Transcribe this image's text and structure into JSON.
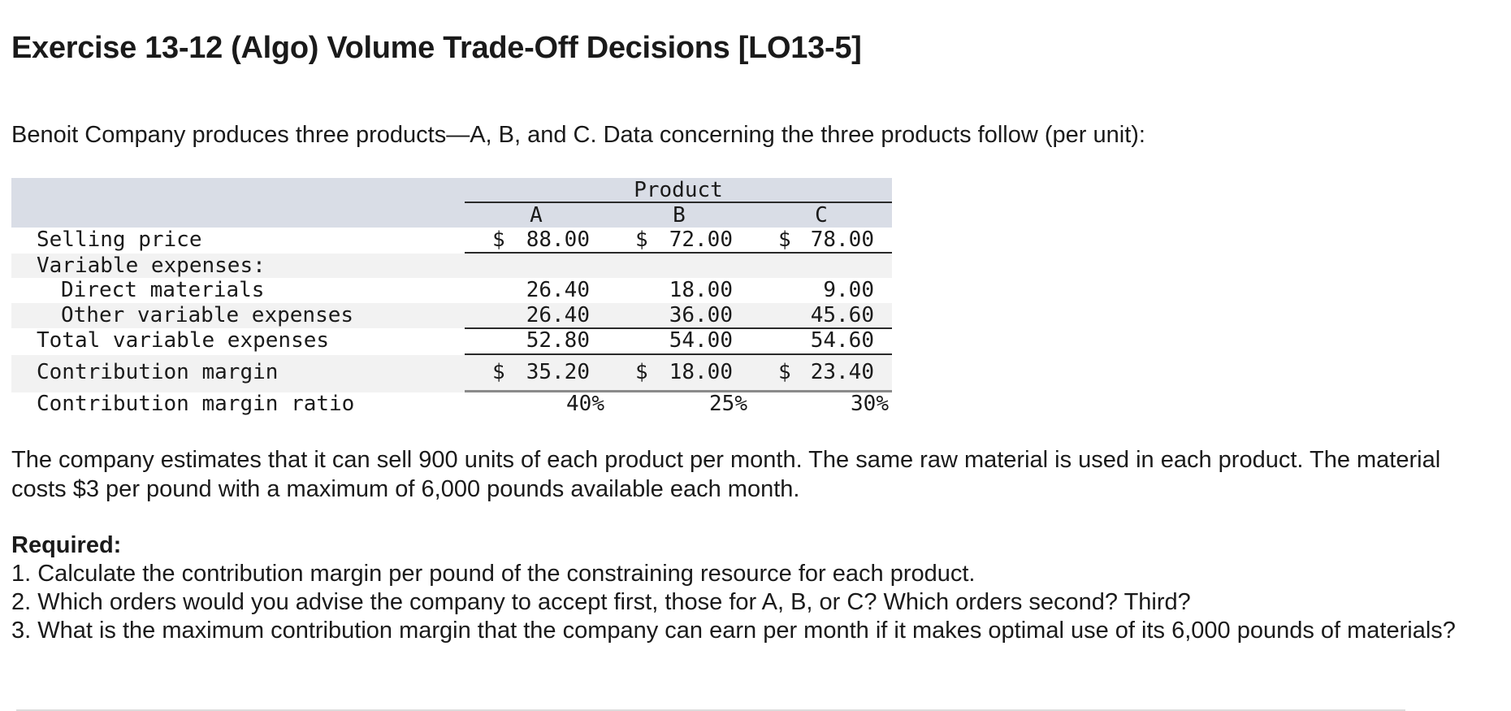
{
  "title": "Exercise 13-12 (Algo) Volume Trade-Off Decisions [LO13-5]",
  "intro": "Benoit Company produces three products—A, B, and C. Data concerning the three products follow (per unit):",
  "table": {
    "group_header": "Product",
    "columns": [
      "A",
      "B",
      "C"
    ],
    "rows": [
      {
        "label": "Selling price",
        "values": [
          "88.00",
          "72.00",
          "78.00"
        ],
        "currency": "$"
      },
      {
        "label": "Variable expenses:",
        "values": [
          "",
          "",
          ""
        ]
      },
      {
        "label": "Direct materials",
        "values": [
          "26.40",
          "18.00",
          "9.00"
        ]
      },
      {
        "label": "Other variable expenses",
        "values": [
          "26.40",
          "36.00",
          "45.60"
        ]
      },
      {
        "label": "Total variable expenses",
        "values": [
          "52.80",
          "54.00",
          "54.60"
        ]
      },
      {
        "label": "Contribution margin",
        "values": [
          "35.20",
          "18.00",
          "23.40"
        ],
        "currency": "$"
      },
      {
        "label": "Contribution margin ratio",
        "values": [
          "40%",
          "25%",
          "30%"
        ]
      }
    ]
  },
  "paragraph": "The company estimates that it can sell 900 units of each product per month. The same raw material is used in each product. The material costs $3 per pound with a maximum of 6,000 pounds available each month.",
  "required": {
    "heading": "Required:",
    "items": [
      "1. Calculate the contribution margin per pound of the constraining resource for each product.",
      "2. Which orders would you advise the company to accept first, those for A, B, or C? Which orders second? Third?",
      "3. What is the maximum contribution margin that the company can earn per month if it makes optimal use of its 6,000 pounds of materials?"
    ]
  },
  "colors": {
    "header_fill": "#d9dde6",
    "stripe_fill": "#f2f2f2",
    "text": "#1a1a1a"
  }
}
